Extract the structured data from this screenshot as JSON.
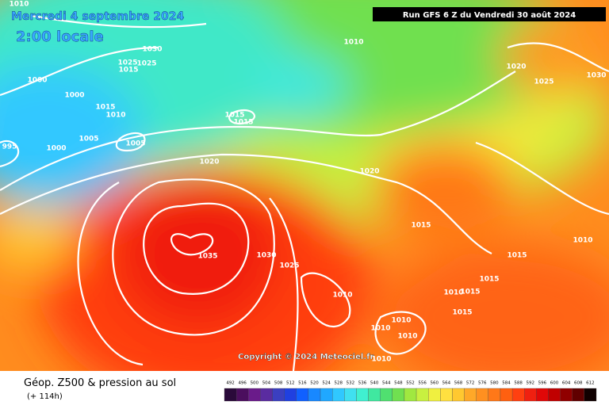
{
  "header": {
    "valid_date": "Mercredi 4 septembre 2024",
    "local_time": "2:00 locale",
    "run": "Run GFS 6 Z du Vendredi 30 août 2024",
    "copyright": "Copyright © 2024 Meteociel.fr"
  },
  "footer": {
    "title": "Géop. Z500 & pression au sol",
    "lead": "(+ 114h)"
  },
  "isobar_labels": [
    "1010",
    "1030",
    "1025",
    "1025",
    "1015",
    "1000",
    "1000",
    "1015",
    "1010",
    "1005",
    "1005",
    "995",
    "1000",
    "1010",
    "1020",
    "1025",
    "1030",
    "1015",
    "1015",
    "1020",
    "1020",
    "1015",
    "1035",
    "1030",
    "1025",
    "1010",
    "1010",
    "1015",
    "1015",
    "1010",
    "1015",
    "1015",
    "1010",
    "1010",
    "1010",
    "1010"
  ],
  "color_scale": {
    "labels": [
      "492",
      "496",
      "500",
      "504",
      "508",
      "512",
      "516",
      "520",
      "524",
      "528",
      "532",
      "536",
      "540",
      "544",
      "548",
      "552",
      "556",
      "560",
      "564",
      "568",
      "572",
      "576",
      "580",
      "584",
      "588",
      "592",
      "596",
      "600",
      "604",
      "608",
      "612"
    ],
    "colors": [
      "#2a0a3a",
      "#4b0e5e",
      "#6a1b8a",
      "#5a2ca0",
      "#3b3fc0",
      "#2040e0",
      "#1060ff",
      "#1888ff",
      "#20a8ff",
      "#30c8ff",
      "#40e0f0",
      "#40f0d0",
      "#40e8a0",
      "#50e070",
      "#70e050",
      "#a0e840",
      "#c8f040",
      "#f0f040",
      "#ffe040",
      "#ffc830",
      "#ffa828",
      "#ff9020",
      "#ff7818",
      "#ff6010",
      "#ff4010",
      "#f02010",
      "#e00808",
      "#c00000",
      "#900000",
      "#600000",
      "#100000"
    ]
  }
}
